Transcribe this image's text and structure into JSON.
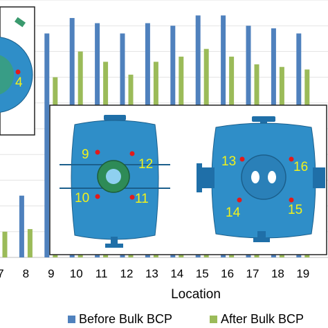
{
  "chart_data": {
    "type": "bar",
    "xlabel": "Location",
    "categories": [
      "7",
      "8",
      "9",
      "10",
      "11",
      "12",
      "13",
      "14",
      "15",
      "16",
      "17",
      "18",
      "19"
    ],
    "ylim": [
      0,
      100
    ],
    "grid": true,
    "legend_position": "bottom",
    "series": [
      {
        "name": "Before Bulk BCP",
        "color": "#4f81bd",
        "values": [
          null,
          24,
          87,
          93,
          91,
          87,
          91,
          90,
          94,
          94,
          90,
          89,
          87
        ]
      },
      {
        "name": "After Bulk BCP",
        "color": "#9bbb59",
        "values": [
          10,
          11,
          70,
          80,
          76,
          71,
          76,
          78,
          81,
          78,
          75,
          74,
          73
        ]
      }
    ],
    "location_labels": [
      "4",
      "9",
      "12",
      "10",
      "11",
      "13",
      "16",
      "14",
      "15"
    ]
  }
}
